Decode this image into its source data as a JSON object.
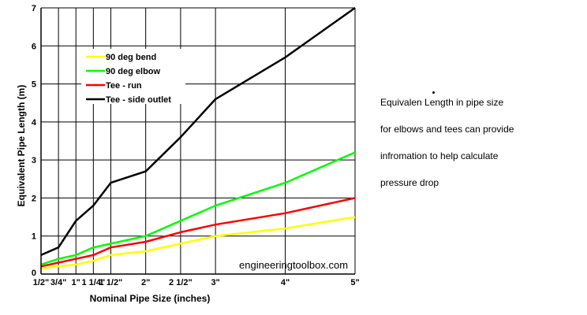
{
  "chart_data": {
    "type": "line",
    "title": "",
    "xlabel": "Nominal Pipe Size (inches)",
    "ylabel": "Equivalent Pipe Length (m)",
    "ylim": [
      0,
      7
    ],
    "yticks": [
      "0",
      "1",
      "2",
      "3",
      "4",
      "5",
      "6",
      "7"
    ],
    "categories": [
      "1/2\"",
      "3/4\"",
      "1\"",
      "1 1/4\"",
      "1 1/2\"",
      "2\"",
      "2 1/2\"",
      "3\"",
      "4\"",
      "5\""
    ],
    "x_positions": [
      0.5,
      0.75,
      1,
      1.25,
      1.5,
      2,
      2.5,
      3,
      4,
      5
    ],
    "grid": true,
    "legend_position": "top-left",
    "series": [
      {
        "name": "90 deg bend",
        "color": "#ffff00",
        "values": [
          0.15,
          0.2,
          0.25,
          0.35,
          0.5,
          0.6,
          0.8,
          1.0,
          1.2,
          1.5
        ]
      },
      {
        "name": "90 deg elbow",
        "color": "#00ff00",
        "values": [
          0.25,
          0.4,
          0.5,
          0.7,
          0.8,
          1.0,
          1.4,
          1.8,
          2.4,
          3.2
        ]
      },
      {
        "name": "Tee - run",
        "color": "#ff0000",
        "values": [
          0.2,
          0.3,
          0.4,
          0.5,
          0.7,
          0.85,
          1.1,
          1.3,
          1.6,
          2.0
        ]
      },
      {
        "name": "Tee - side outlet",
        "color": "#000000",
        "values": [
          0.5,
          0.7,
          1.4,
          1.8,
          2.4,
          2.7,
          3.6,
          4.6,
          5.7,
          7.0
        ]
      }
    ]
  },
  "watermark": "engineeringtoolbox.com",
  "note": {
    "lines": [
      "Equivalen Length in pipe size",
      "for elbows and tees can provide",
      "infromation to help calculate",
      "pressure drop"
    ]
  }
}
